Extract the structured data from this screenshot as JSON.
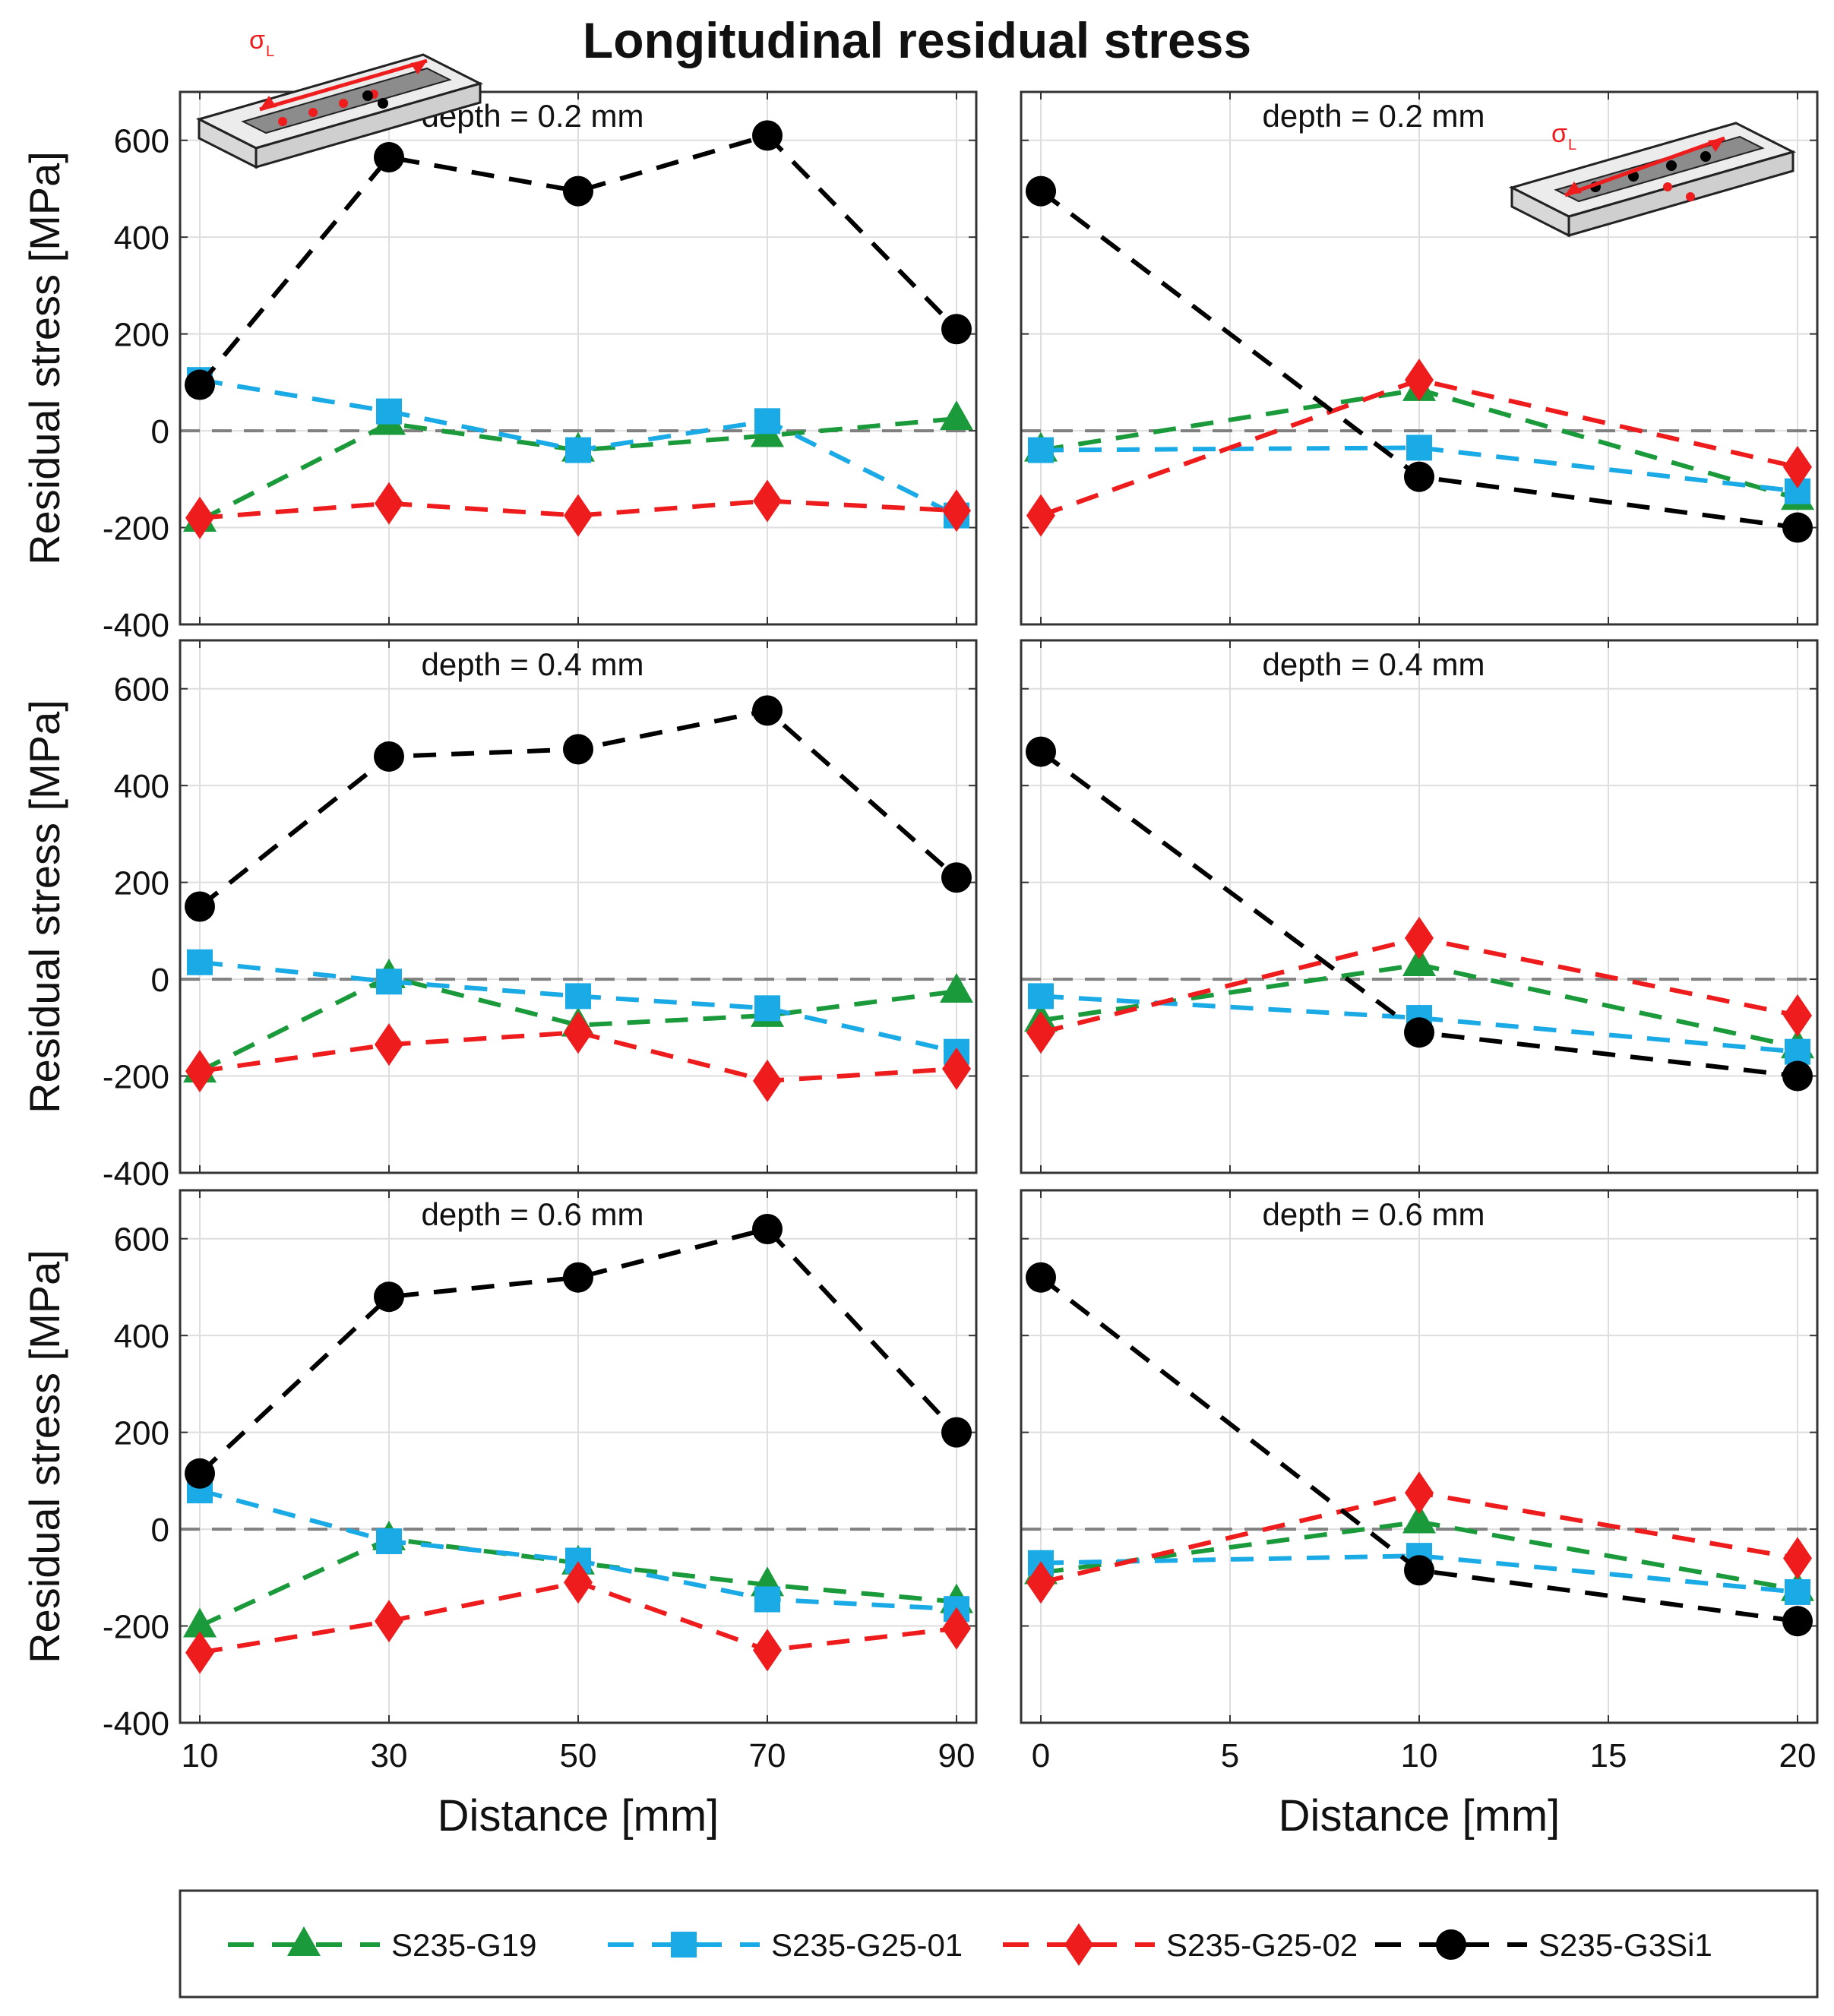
{
  "figure_title": "Longitudinal residual stress",
  "xlabel": "Distance [mm]",
  "ylabel": "Residual stress [MPa]",
  "inset_label": "σ",
  "inset_subscript": "L",
  "colors": {
    "S235-G19": "#1a9a3a",
    "S235-G25-01": "#1aaae6",
    "S235-G25-02": "#ee1c1c",
    "S235-G3Si1": "#000000",
    "zero_line": "#808080",
    "grid": "#dedede"
  },
  "legend": [
    {
      "name": "S235-G19",
      "marker": "triangle"
    },
    {
      "name": "S235-G25-01",
      "marker": "square"
    },
    {
      "name": "S235-G25-02",
      "marker": "diamond"
    },
    {
      "name": "S235-G3Si1",
      "marker": "circle"
    }
  ],
  "chart_data": [
    {
      "type": "line",
      "title": "depth = 0.2 mm",
      "xlim": [
        10,
        90
      ],
      "ylim": [
        -400,
        700
      ],
      "xticks": [
        10,
        30,
        50,
        70,
        90
      ],
      "yticks": [
        -400,
        -200,
        0,
        200,
        400,
        600
      ],
      "x": [
        10,
        30,
        50,
        70,
        90
      ],
      "series": [
        {
          "name": "S235-G19",
          "values": [
            -185,
            15,
            -40,
            -10,
            25
          ]
        },
        {
          "name": "S235-G25-01",
          "values": [
            105,
            40,
            -40,
            20,
            -175
          ]
        },
        {
          "name": "S235-G25-02",
          "values": [
            -180,
            -150,
            -175,
            -145,
            -165
          ]
        },
        {
          "name": "S235-G3Si1",
          "values": [
            95,
            565,
            495,
            610,
            210
          ]
        }
      ]
    },
    {
      "type": "line",
      "title": "depth = 0.2 mm",
      "xlim": [
        0,
        20
      ],
      "ylim": [
        -400,
        700
      ],
      "xticks": [
        0,
        5,
        10,
        15,
        20
      ],
      "yticks": [
        -400,
        -200,
        0,
        200,
        400,
        600
      ],
      "x": [
        0,
        10,
        20
      ],
      "series": [
        {
          "name": "S235-G19",
          "values": [
            -40,
            85,
            -140
          ]
        },
        {
          "name": "S235-G25-01",
          "values": [
            -40,
            -35,
            -125
          ]
        },
        {
          "name": "S235-G25-02",
          "values": [
            -175,
            105,
            -75
          ]
        },
        {
          "name": "S235-G3Si1",
          "values": [
            495,
            -95,
            -200
          ]
        }
      ]
    },
    {
      "type": "line",
      "title": "depth = 0.4 mm",
      "xlim": [
        10,
        90
      ],
      "ylim": [
        -400,
        700
      ],
      "xticks": [
        10,
        30,
        50,
        70,
        90
      ],
      "yticks": [
        -400,
        -200,
        0,
        200,
        400,
        600
      ],
      "x": [
        10,
        30,
        50,
        70,
        90
      ],
      "series": [
        {
          "name": "S235-G19",
          "values": [
            -190,
            5,
            -95,
            -75,
            -25
          ]
        },
        {
          "name": "S235-G25-01",
          "values": [
            35,
            -5,
            -35,
            -60,
            -150
          ]
        },
        {
          "name": "S235-G25-02",
          "values": [
            -190,
            -135,
            -110,
            -210,
            -185
          ]
        },
        {
          "name": "S235-G3Si1",
          "values": [
            150,
            460,
            475,
            555,
            210
          ]
        }
      ]
    },
    {
      "type": "line",
      "title": "depth = 0.4 mm",
      "xlim": [
        0,
        20
      ],
      "ylim": [
        -400,
        700
      ],
      "xticks": [
        0,
        5,
        10,
        15,
        20
      ],
      "yticks": [
        -400,
        -200,
        0,
        200,
        400,
        600
      ],
      "x": [
        0,
        10,
        20
      ],
      "series": [
        {
          "name": "S235-G19",
          "values": [
            -85,
            30,
            -140
          ]
        },
        {
          "name": "S235-G25-01",
          "values": [
            -35,
            -80,
            -150
          ]
        },
        {
          "name": "S235-G25-02",
          "values": [
            -110,
            85,
            -75
          ]
        },
        {
          "name": "S235-G3Si1",
          "values": [
            470,
            -110,
            -200
          ]
        }
      ]
    },
    {
      "type": "line",
      "title": "depth = 0.6 mm",
      "xlim": [
        10,
        90
      ],
      "ylim": [
        -400,
        700
      ],
      "xticks": [
        10,
        30,
        50,
        70,
        90
      ],
      "yticks": [
        -400,
        -200,
        0,
        200,
        400,
        600
      ],
      "x": [
        10,
        30,
        50,
        70,
        90
      ],
      "series": [
        {
          "name": "S235-G19",
          "values": [
            -200,
            -20,
            -70,
            -115,
            -150
          ]
        },
        {
          "name": "S235-G25-01",
          "values": [
            80,
            -25,
            -65,
            -145,
            -165
          ]
        },
        {
          "name": "S235-G25-02",
          "values": [
            -255,
            -190,
            -110,
            -250,
            -205
          ]
        },
        {
          "name": "S235-G3Si1",
          "values": [
            115,
            480,
            520,
            620,
            200
          ]
        }
      ]
    },
    {
      "type": "line",
      "title": "depth = 0.6 mm",
      "xlim": [
        0,
        20
      ],
      "ylim": [
        -400,
        700
      ],
      "xticks": [
        0,
        5,
        10,
        15,
        20
      ],
      "yticks": [
        -400,
        -200,
        0,
        200,
        400,
        600
      ],
      "x": [
        0,
        10,
        20
      ],
      "series": [
        {
          "name": "S235-G19",
          "values": [
            -90,
            15,
            -125
          ]
        },
        {
          "name": "S235-G25-01",
          "values": [
            -70,
            -55,
            -130
          ]
        },
        {
          "name": "S235-G25-02",
          "values": [
            -110,
            75,
            -60
          ]
        },
        {
          "name": "S235-G3Si1",
          "values": [
            520,
            -85,
            -190
          ]
        }
      ]
    }
  ]
}
